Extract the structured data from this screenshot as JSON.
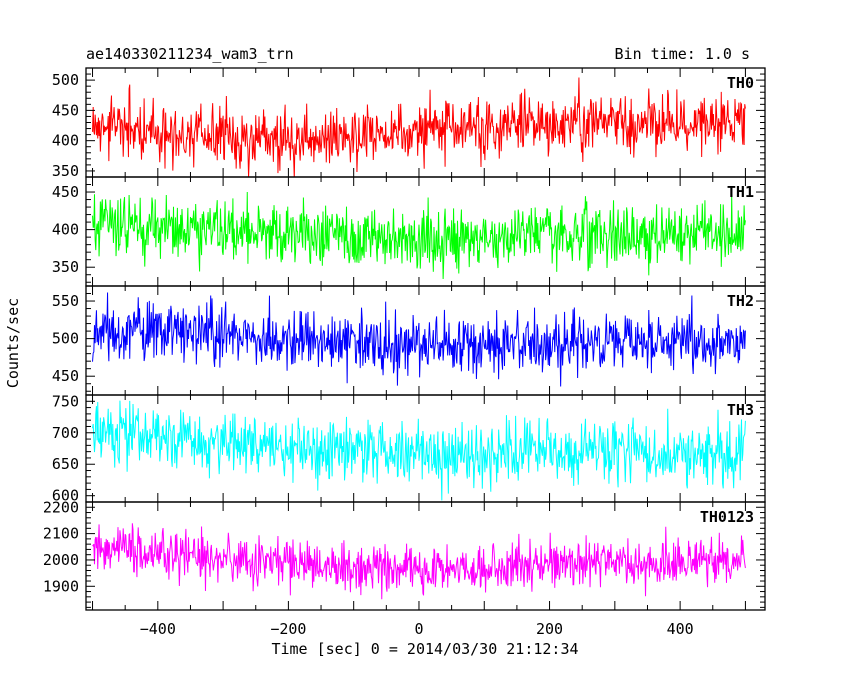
{
  "header": {
    "title": "ae140330211234_wam3_trn",
    "bin_time": "Bin time: 1.0 s"
  },
  "chart_data": {
    "type": "line",
    "xlabel": "Time [sec] 0 = 2014/03/30 21:12:34",
    "ylabel": "Counts/sec",
    "xlim": [
      -510,
      530
    ],
    "x_ticks": [
      -400,
      -200,
      0,
      200,
      400
    ],
    "x_range": [
      -500,
      500
    ],
    "grid": false,
    "panels": [
      {
        "name": "TH0",
        "color": "#ff0000",
        "ylim": [
          340,
          520
        ],
        "y_ticks": [
          350,
          400,
          450,
          500
        ],
        "trend": [
          [
            -500,
            425
          ],
          [
            -300,
            405
          ],
          [
            -150,
            405
          ],
          [
            0,
            415
          ],
          [
            250,
            430
          ],
          [
            500,
            430
          ]
        ],
        "noise_sd": 25
      },
      {
        "name": "TH1",
        "color": "#00ff00",
        "ylim": [
          325,
          470
        ],
        "y_ticks": [
          350,
          400,
          450
        ],
        "trend": [
          [
            -500,
            410
          ],
          [
            -300,
            400
          ],
          [
            0,
            385
          ],
          [
            250,
            395
          ],
          [
            500,
            395
          ]
        ],
        "noise_sd": 20
      },
      {
        "name": "TH2",
        "color": "#0000ff",
        "ylim": [
          425,
          570
        ],
        "y_ticks": [
          450,
          500,
          550
        ],
        "trend": [
          [
            -500,
            510
          ],
          [
            -300,
            505
          ],
          [
            0,
            490
          ],
          [
            250,
            495
          ],
          [
            500,
            495
          ]
        ],
        "noise_sd": 20
      },
      {
        "name": "TH3",
        "color": "#00ffff",
        "ylim": [
          590,
          760
        ],
        "y_ticks": [
          600,
          650,
          700,
          750
        ],
        "trend": [
          [
            -500,
            705
          ],
          [
            -300,
            680
          ],
          [
            0,
            665
          ],
          [
            250,
            670
          ],
          [
            500,
            665
          ]
        ],
        "noise_sd": 25
      },
      {
        "name": "TH0123",
        "color": "#ff00ff",
        "ylim": [
          1810,
          2220
        ],
        "y_ticks": [
          1900,
          2000,
          2100,
          2200
        ],
        "trend": [
          [
            -500,
            2060
          ],
          [
            -300,
            2000
          ],
          [
            0,
            1960
          ],
          [
            250,
            1990
          ],
          [
            500,
            1990
          ]
        ],
        "noise_sd": 45
      }
    ]
  }
}
